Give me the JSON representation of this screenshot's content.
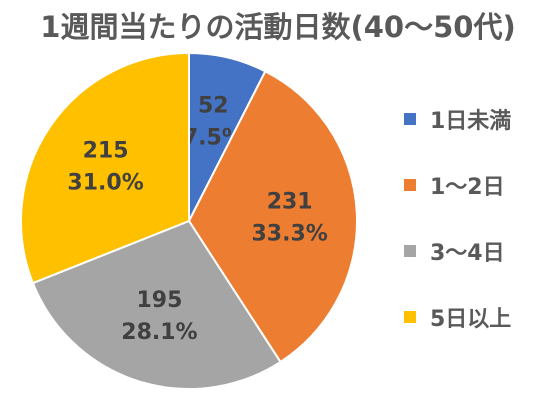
{
  "title": "1週間当たりの活動日数(40～50代)",
  "chart_data": {
    "type": "pie",
    "categories": [
      "1日未満",
      "1～2日",
      "3～4日",
      "5日以上"
    ],
    "values": [
      52,
      231,
      195,
      215
    ],
    "percent_labels": [
      "7.5%",
      "33.3%",
      "28.1%",
      "31.0%"
    ],
    "colors": [
      "#4472C4",
      "#ED7D31",
      "#A5A5A5",
      "#FFC000"
    ],
    "start_angle_deg": 0,
    "direction": "clockwise",
    "legend_position": "right"
  }
}
